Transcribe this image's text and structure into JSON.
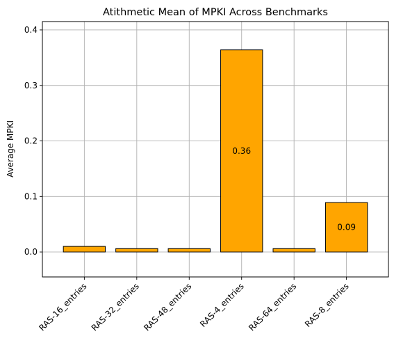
{
  "chart_data": {
    "type": "bar",
    "title": "Atithmetic Mean of MPKI Across Benchmarks",
    "xlabel": "",
    "ylabel": "Average MPKI",
    "categories": [
      "RAS-16_entries",
      "RAS-32_entries",
      "RAS-48_entries",
      "RAS-4_entries",
      "RAS-64_entries",
      "RAS-8_entries"
    ],
    "values": [
      0.01,
      0.006,
      0.006,
      0.364,
      0.006,
      0.089
    ],
    "data_labels": [
      "",
      "",
      "",
      "0.36",
      "",
      "0.09"
    ],
    "ylim": [
      -0.045,
      0.415
    ],
    "yticks": [
      0.0,
      0.1,
      0.2,
      0.3,
      0.4
    ],
    "ytick_labels": [
      "0.0",
      "0.1",
      "0.2",
      "0.3",
      "0.4"
    ],
    "grid": true,
    "bar_color": "#ffa500",
    "edge_color": "#000000"
  }
}
